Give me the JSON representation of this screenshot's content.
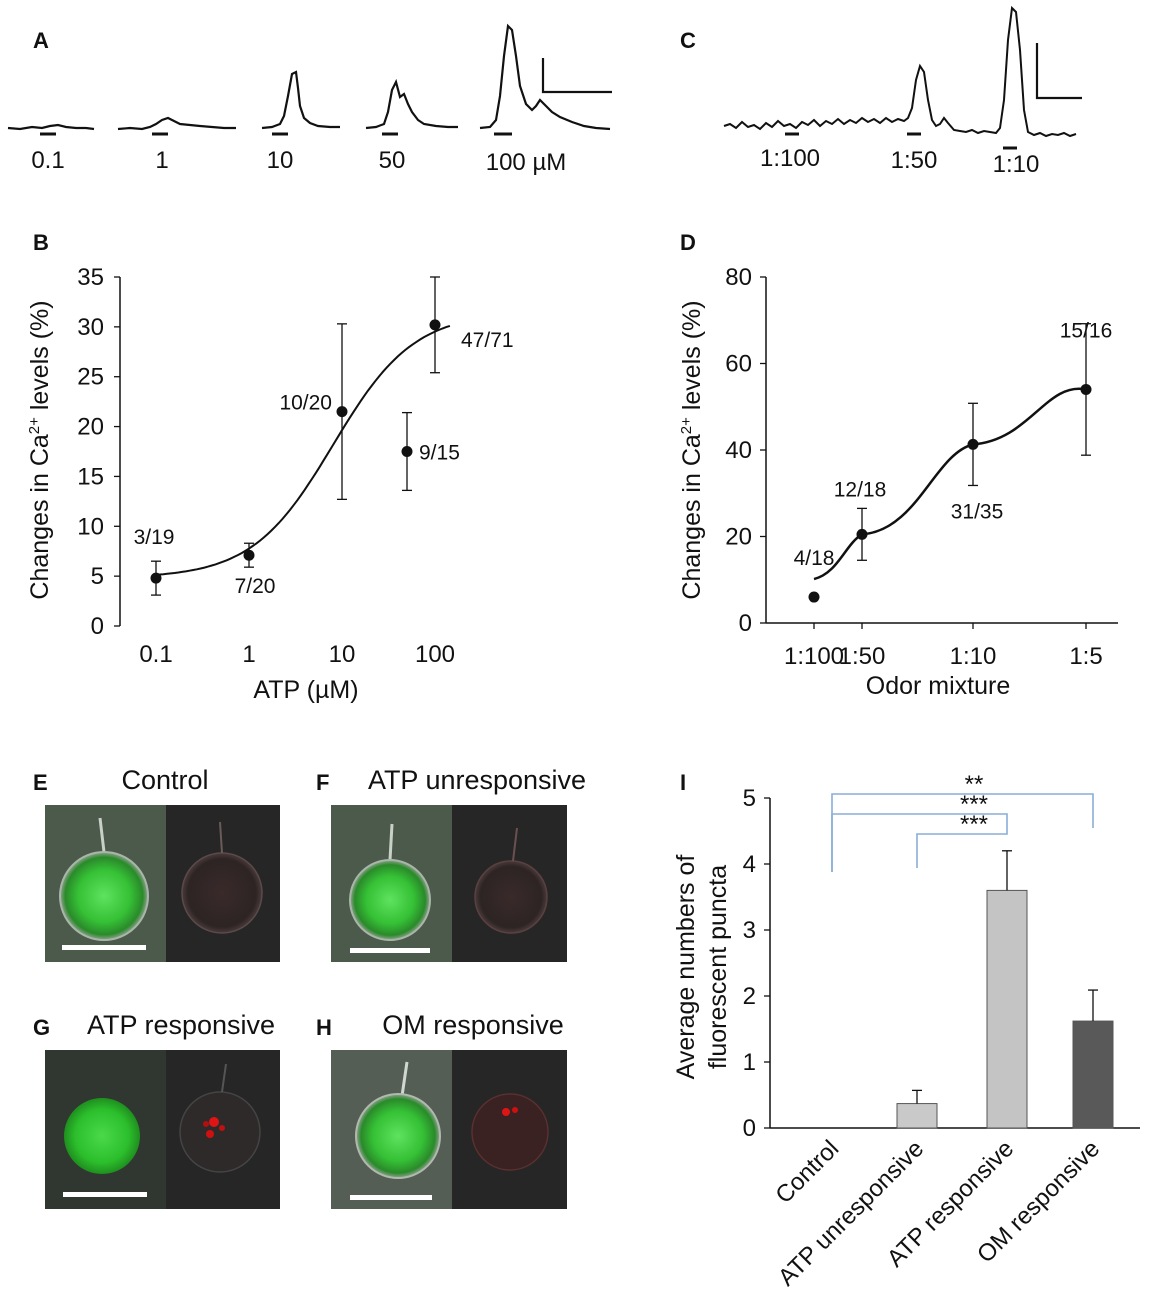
{
  "panels": {
    "A": "A",
    "B": "B",
    "C": "C",
    "D": "D",
    "E": "E",
    "F": "F",
    "G": "G",
    "H": "H",
    "I": "I"
  },
  "traces_A": {
    "labels": [
      "0.1",
      "1",
      "10",
      "50",
      "100 µM"
    ]
  },
  "traces_C": {
    "labels": [
      "1:100",
      "1:50",
      "1:10"
    ]
  },
  "images": {
    "E": "Control",
    "F": "ATP unresponsive",
    "G": "ATP responsive",
    "H": "OM responsive"
  },
  "chart_data": [
    {
      "panel": "B",
      "type": "scatter",
      "x_scale": "log",
      "xlabel": "ATP (µM)",
      "ylabel_parts": [
        "Changes in Ca",
        "2+",
        " levels  (%)"
      ],
      "x_ticks": [
        "0.1",
        "1",
        "10",
        "100"
      ],
      "y_ticks": [
        "0",
        "5",
        "10",
        "15",
        "20",
        "25",
        "30",
        "35"
      ],
      "ylim": [
        0,
        35
      ],
      "points": [
        {
          "x": 0.1,
          "y": 4.8,
          "err": 1.7,
          "label": "3/19"
        },
        {
          "x": 1,
          "y": 7.1,
          "err": 1.2,
          "label": "7/20"
        },
        {
          "x": 10,
          "y": 21.5,
          "err": 8.8,
          "label": "10/20"
        },
        {
          "x": 50,
          "y": 17.5,
          "err": 3.9,
          "label": "9/15"
        },
        {
          "x": 100,
          "y": 30.2,
          "err": 4.8,
          "label": "47/71"
        }
      ],
      "fit": {
        "type": "sigmoid",
        "bottom": 4.8,
        "top": 31.5,
        "ec50": 8,
        "hill": 1
      }
    },
    {
      "panel": "D",
      "type": "line",
      "xlabel": "Odor mixture",
      "ylabel_parts": [
        "Changes in Ca",
        "2+",
        " levels  (%)"
      ],
      "categories": [
        "1:100",
        "1:50",
        "1:10",
        "1:5"
      ],
      "y_ticks": [
        "0",
        "20",
        "40",
        "60",
        "80"
      ],
      "ylim": [
        0,
        80
      ],
      "points": [
        {
          "x": "1:100",
          "y": 6,
          "err": 0,
          "label": "4/18"
        },
        {
          "x": "1:50",
          "y": 20.5,
          "err": 6,
          "label": "12/18"
        },
        {
          "x": "1:10",
          "y": 41.3,
          "err": 9.5,
          "label": "31/35"
        },
        {
          "x": "1:5",
          "y": 54,
          "err": 15.2,
          "label": "15/16"
        }
      ]
    },
    {
      "panel": "I",
      "type": "bar",
      "ylabel_lines": [
        "Average  numbers of",
        "fluorescent puncta"
      ],
      "categories": [
        "Control",
        "ATP unresponsive",
        "ATP responsive",
        "OM responsive"
      ],
      "values": [
        0,
        0.37,
        3.6,
        1.62
      ],
      "errors": [
        0,
        0.2,
        0.6,
        0.47
      ],
      "colors": [
        "#d9d9d9",
        "#c9c9c9",
        "#c4c4c4",
        "#595959"
      ],
      "y_ticks": [
        "0",
        "1",
        "2",
        "3",
        "4",
        "5"
      ],
      "ylim": [
        0,
        5
      ],
      "significance": [
        {
          "from": "Control",
          "to": "OM responsive",
          "label": "**"
        },
        {
          "from": "Control",
          "to": "ATP responsive",
          "label": "***"
        },
        {
          "from": "ATP unresponsive",
          "to": "ATP responsive",
          "label": "***"
        }
      ],
      "bracket_color": "#8aaed6"
    }
  ]
}
